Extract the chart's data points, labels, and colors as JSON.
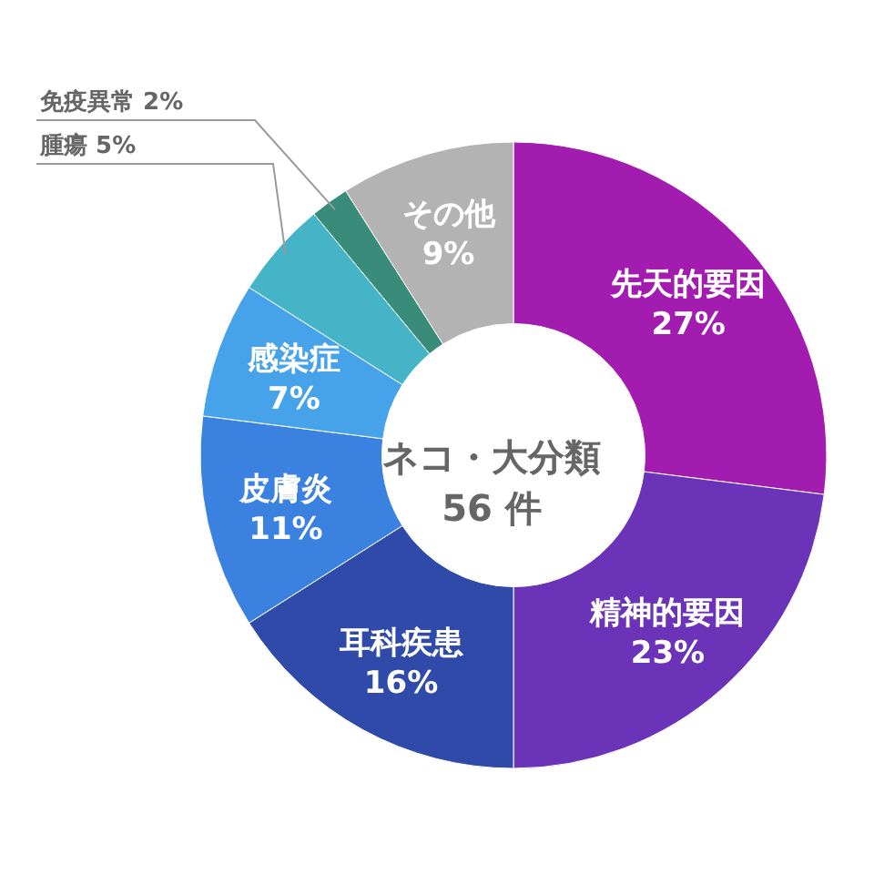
{
  "chart_data": {
    "type": "donut",
    "title": "ネコ・大分類",
    "subtitle": "56 件",
    "categories": [
      "先天的要因",
      "精神的要因",
      "耳科疾患",
      "皮膚炎",
      "感染症",
      "腫瘍",
      "免疫異常",
      "その他"
    ],
    "values": [
      27,
      23,
      16,
      11,
      7,
      5,
      2,
      9
    ],
    "value_labels": [
      "27%",
      "23%",
      "16%",
      "11%",
      "7%",
      "5%",
      "2%",
      "9%"
    ],
    "colors": [
      "#a21caf",
      "#6a33b8",
      "#2f4aa8",
      "#3b82e0",
      "#46a3ea",
      "#45b4c6",
      "#3a8c7a",
      "#b3b3b3"
    ]
  }
}
